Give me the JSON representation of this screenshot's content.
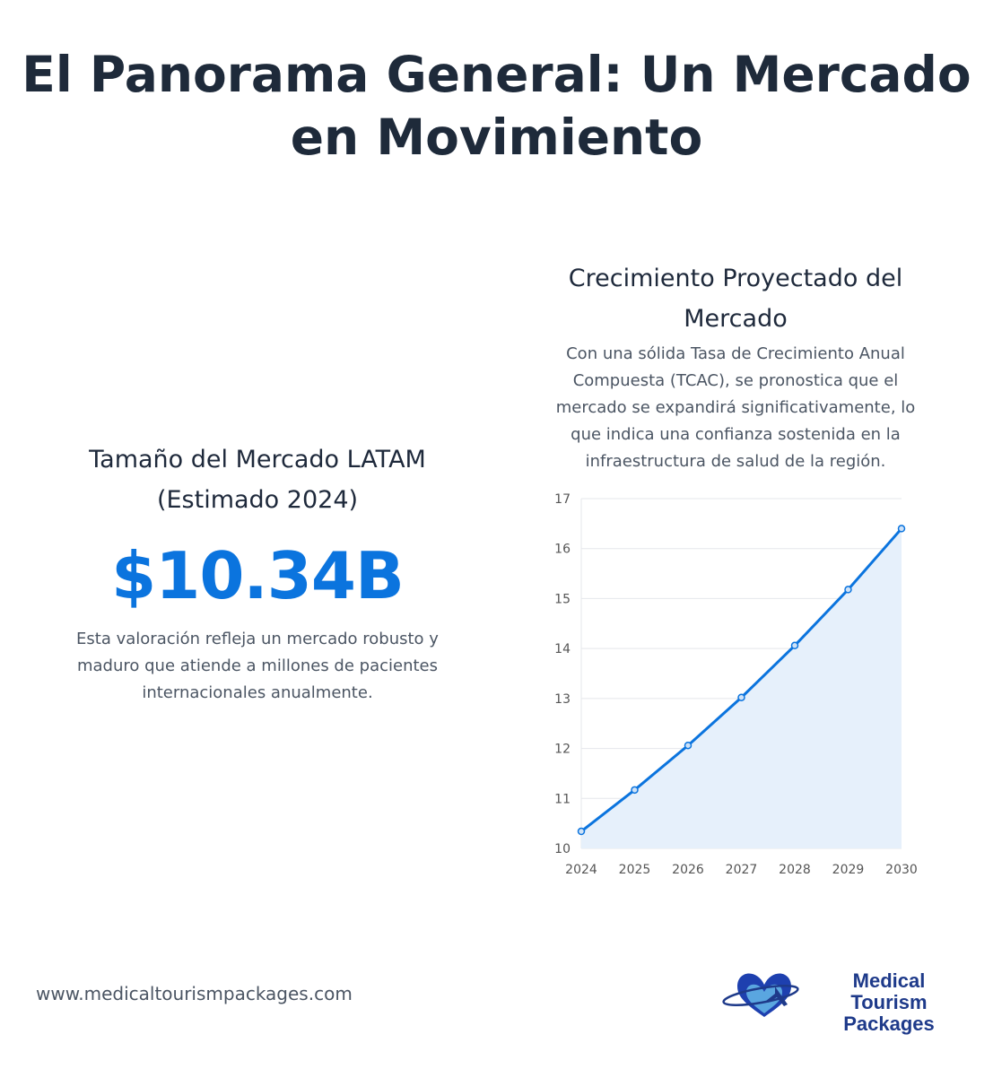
{
  "title": "El Panorama General: Un Mercado en Movimiento",
  "left": {
    "heading": "Tamaño del Mercado LATAM (Estimado 2024)",
    "value": "$10.34B",
    "description": "Esta valoración refleja un mercado robusto y maduro que atiende a millones de pacientes internacionales anualmente."
  },
  "right": {
    "heading": "Crecimiento Proyectado del Mercado",
    "description": "Con una sólida Tasa de Crecimiento Anual Compuesta (TCAC), se pronostica que el mercado se expandirá significativamente, lo que indica una confianza sostenida en la infraestructura de salud de la región."
  },
  "chart_data": {
    "type": "area",
    "x": [
      "2024",
      "2025",
      "2026",
      "2027",
      "2028",
      "2029",
      "2030"
    ],
    "values": [
      10.34,
      11.17,
      12.06,
      13.02,
      14.06,
      15.18,
      16.4
    ],
    "ylim": [
      10,
      17
    ],
    "yticks": [
      10,
      11,
      12,
      13,
      14,
      15,
      16,
      17
    ],
    "grid": true,
    "color": "#0b74de",
    "fill": "#e6f0fb"
  },
  "footer": {
    "url": "www.medicaltourismpackages.com",
    "logo_text_1": "Medical Tourism",
    "logo_text_2": "Packages"
  }
}
